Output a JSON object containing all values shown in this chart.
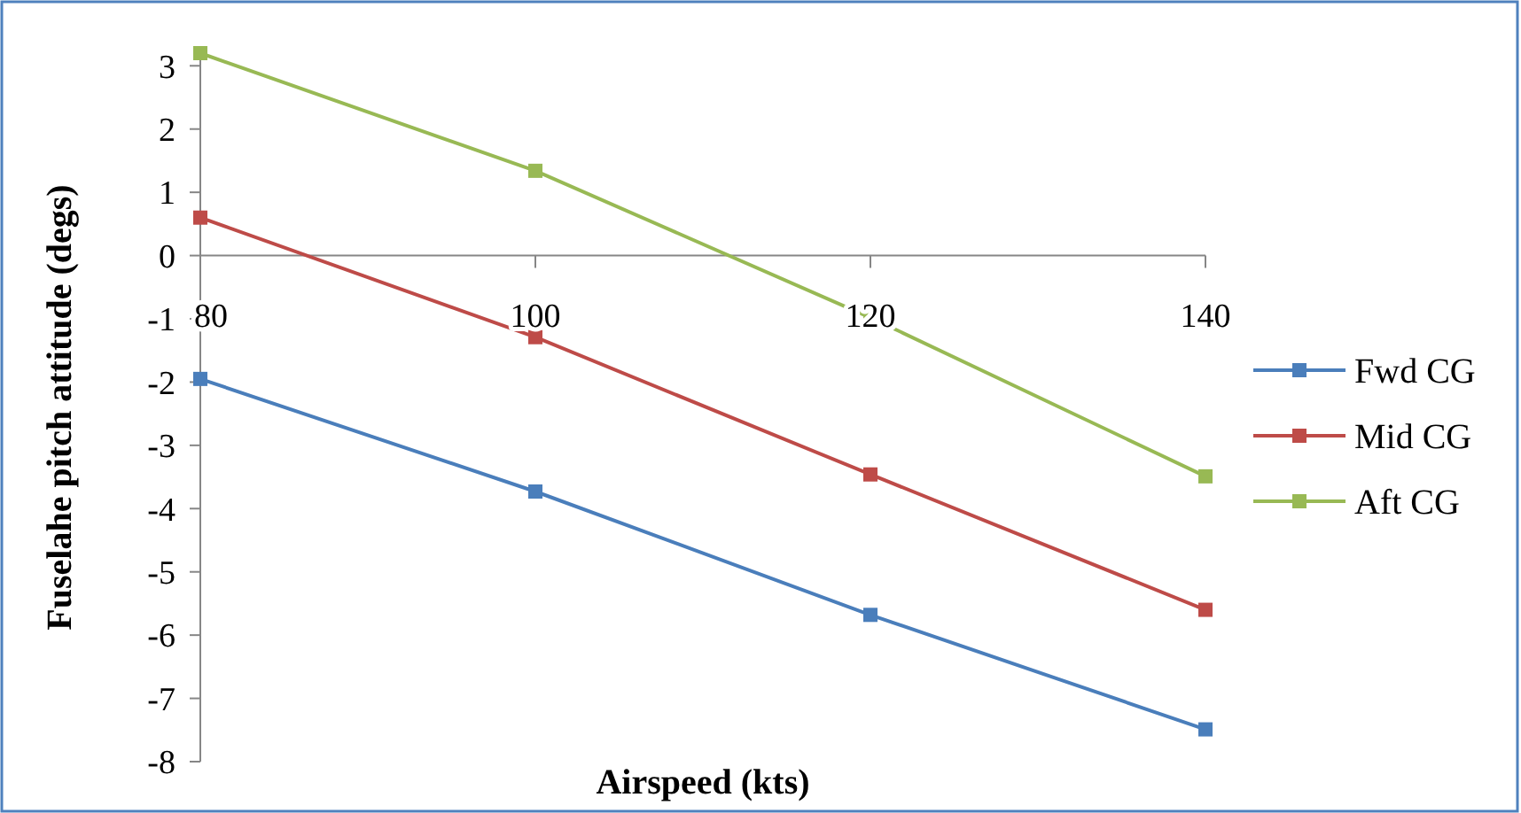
{
  "chart_data": {
    "type": "line",
    "xlabel": "Airspeed (kts)",
    "ylabel": "Fuselahe pitch attitude (degs)",
    "categories": [
      "80",
      "100",
      "120",
      "140"
    ],
    "series": [
      {
        "name": "Fwd CG",
        "color": "#4a7ebb",
        "values": [
          -1.95,
          -3.73,
          -5.68,
          -7.49
        ]
      },
      {
        "name": "Mid CG",
        "color": "#be4b48",
        "values": [
          0.6,
          -1.29,
          -3.46,
          -5.6
        ]
      },
      {
        "name": "Aft CG",
        "color": "#98b954",
        "values": [
          3.2,
          1.34,
          -0.98,
          -3.49
        ]
      }
    ],
    "ylim": [
      -8,
      3.2
    ],
    "yticks": [
      -8,
      -7,
      -6,
      -5,
      -4,
      -3,
      -2,
      -1,
      0,
      1,
      2,
      3
    ],
    "grid": false,
    "legend": "right",
    "marker": "square",
    "line_style": "solid"
  }
}
